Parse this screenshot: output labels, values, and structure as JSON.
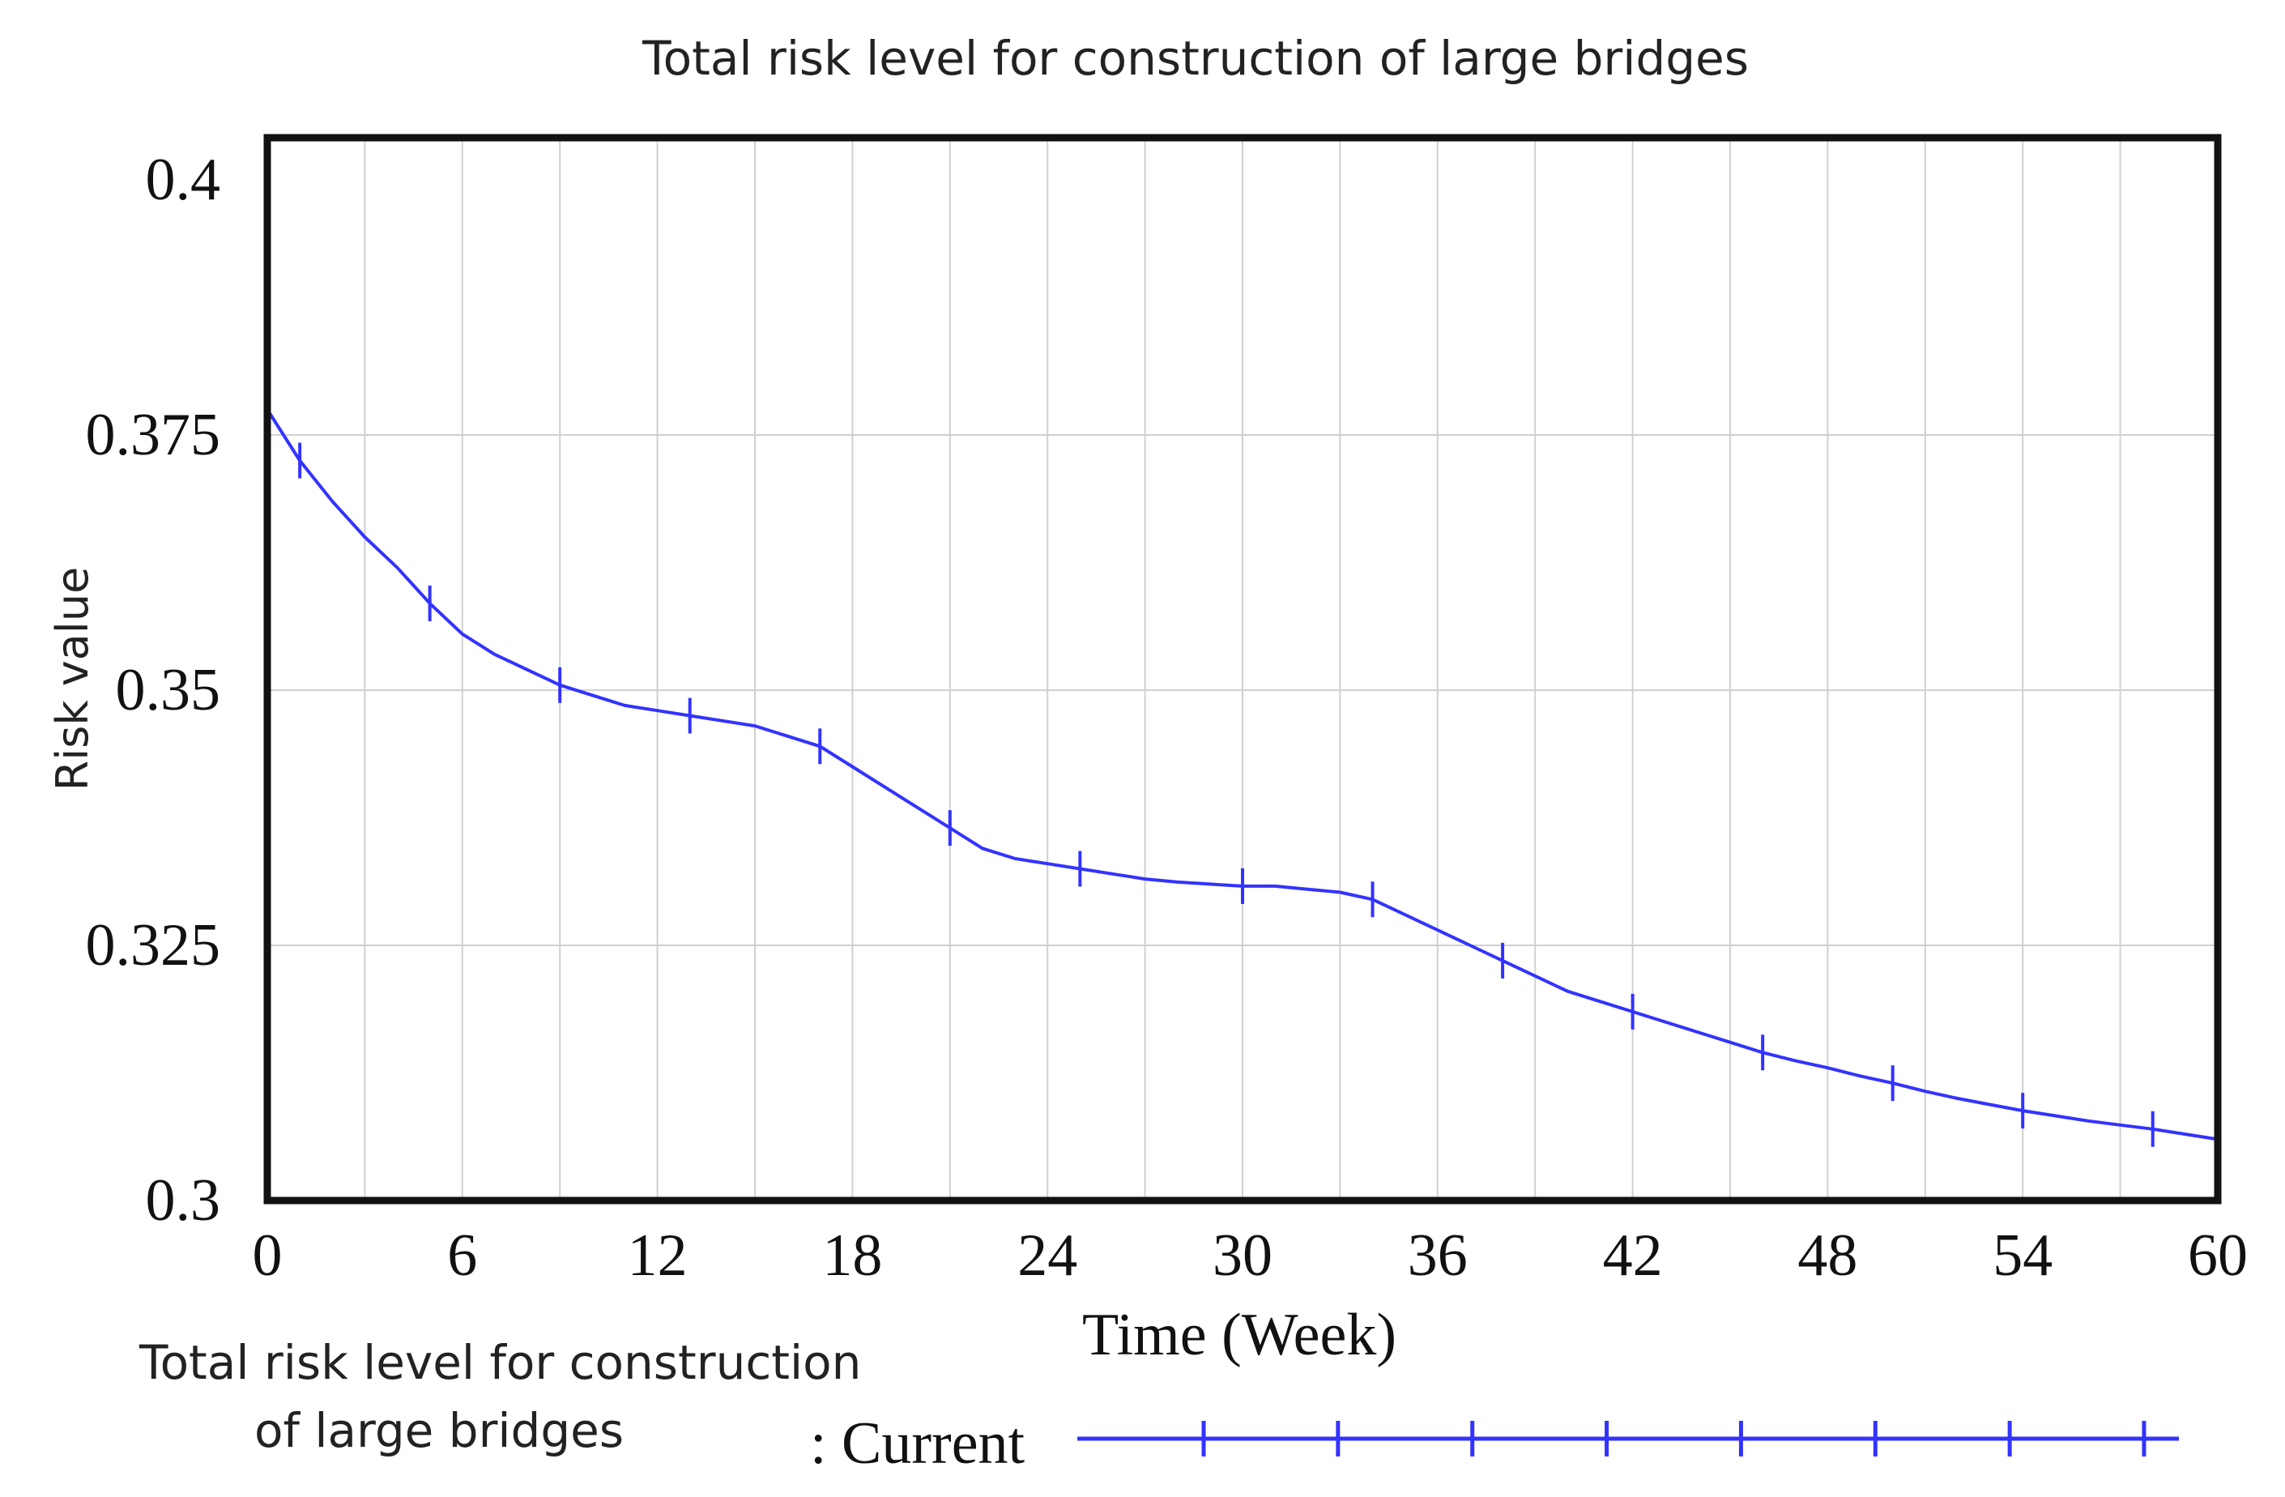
{
  "chart_data": {
    "type": "line",
    "title": "Total risk level for construction of large bridges",
    "xlabel": "Time (Week)",
    "ylabel": "Risk value",
    "xlim": [
      0,
      60
    ],
    "ylim": [
      0.3,
      0.4
    ],
    "x_ticks": [
      0,
      6,
      12,
      18,
      24,
      30,
      36,
      42,
      48,
      54,
      60
    ],
    "x_tick_labels": [
      "0",
      "6",
      "12",
      "18",
      "24",
      "30",
      "36",
      "42",
      "48",
      "54",
      "60"
    ],
    "y_ticks": [
      0.3,
      0.325,
      0.35,
      0.375,
      0.4
    ],
    "y_tick_labels": [
      "0.3",
      "0.325",
      "0.35",
      "0.375",
      "0.4"
    ],
    "grid": true,
    "series": [
      {
        "name": "Current",
        "color": "#3333ff",
        "marker": "vertical-tick",
        "x": [
          0,
          1,
          2,
          3,
          4,
          5,
          6,
          7,
          8,
          9,
          10,
          11,
          12,
          13,
          14,
          15,
          16,
          17,
          18,
          19,
          20,
          21,
          22,
          23,
          24,
          25,
          26,
          27,
          28,
          29,
          30,
          31,
          32,
          33,
          34,
          35,
          36,
          37,
          38,
          39,
          40,
          41,
          42,
          43,
          44,
          45,
          46,
          47,
          48,
          49,
          50,
          51,
          52,
          53,
          54,
          55,
          56,
          57,
          58,
          59,
          60
        ],
        "y": [
          0.3775,
          0.3725,
          0.3685,
          0.365,
          0.362,
          0.3585,
          0.3555,
          0.3535,
          0.352,
          0.3505,
          0.3495,
          0.3485,
          0.348,
          0.3475,
          0.347,
          0.3465,
          0.3455,
          0.3445,
          0.3425,
          0.3405,
          0.3385,
          0.3365,
          0.3345,
          0.3335,
          0.333,
          0.3325,
          0.332,
          0.3315,
          0.3312,
          0.331,
          0.3308,
          0.3308,
          0.3305,
          0.3302,
          0.3295,
          0.328,
          0.3265,
          0.325,
          0.3235,
          0.322,
          0.3205,
          0.3195,
          0.3185,
          0.3175,
          0.3165,
          0.3155,
          0.3145,
          0.3137,
          0.313,
          0.3122,
          0.3115,
          0.3107,
          0.31,
          0.3094,
          0.3088,
          0.3083,
          0.3078,
          0.3074,
          0.307,
          0.3065,
          0.306
        ]
      }
    ],
    "marker_x": [
      1,
      5,
      9,
      13,
      17,
      21,
      25,
      30,
      34,
      38,
      42,
      46,
      50,
      54,
      58
    ],
    "legend": {
      "position": "bottom",
      "label_line1": "Total risk level for construction",
      "label_line2": "of large bridges",
      "run_label": ": Current"
    }
  }
}
